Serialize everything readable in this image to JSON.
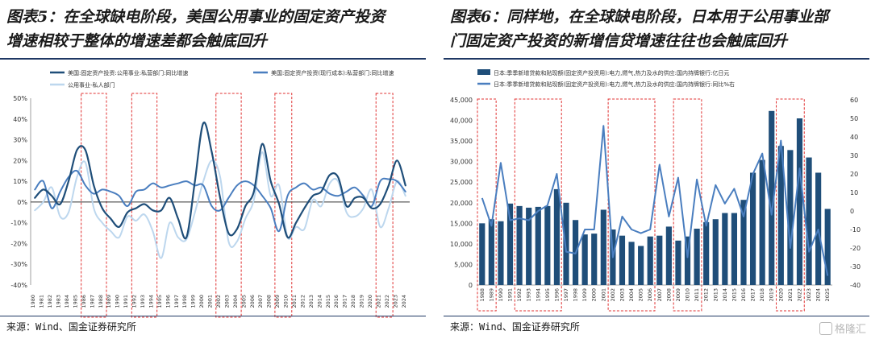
{
  "panel5": {
    "title_line1": "图表5：在全球缺电阶段，美国公用事业的固定资产投资",
    "title_line2": "增速相较于整体的增速差都会触底回升",
    "source": "来源：Wind、国金证券研究所"
  },
  "panel6": {
    "title_line1": "图表6：同样地，在全球缺电阶段，日本用于公用事业部",
    "title_line2": "门固定资产投资的新增信贷增速往往也会触底回升",
    "source": "来源：Wind、国金证券研究所"
  },
  "watermark": "格隆汇",
  "colors": {
    "dark": "#1f4e79",
    "mid": "#4a7ebf",
    "light": "#bdd7ee",
    "highlight": "#e03030",
    "bar": "#1f4e79",
    "line": "#4a7ebf"
  },
  "chart_data": [
    {
      "type": "line",
      "years": [
        "1980",
        "1981",
        "1982",
        "1983",
        "1984",
        "1985",
        "1986",
        "1987",
        "1988",
        "1989",
        "1990",
        "1991",
        "1992",
        "1993",
        "1994",
        "1995",
        "1996",
        "1997",
        "1998",
        "1999",
        "2000",
        "2001",
        "2002",
        "2003",
        "2004",
        "2005",
        "2006",
        "2007",
        "2008",
        "2009",
        "2010",
        "2011",
        "2012",
        "2013",
        "2014",
        "2015",
        "2016",
        "2017",
        "2018",
        "2019",
        "2020",
        "2021",
        "2022",
        "2023",
        "2024"
      ],
      "yticks": [
        "50%",
        "40%",
        "30%",
        "20%",
        "10%",
        "0%",
        "-10%",
        "-20%",
        "-30%",
        "-40%"
      ],
      "ylim": [
        -40,
        50
      ],
      "highlight_ranges": [
        [
          "1986",
          "1988"
        ],
        [
          "1992",
          "1994"
        ],
        [
          "2002",
          "2004"
        ],
        [
          "2009",
          "2010"
        ],
        [
          "2021",
          "2022"
        ]
      ],
      "series": [
        {
          "name": "美国:固定资产投资:公用事业:私营部门:同比增速",
          "color_key": "dark",
          "width": 2.2,
          "values": [
            2,
            6,
            3,
            -1,
            10,
            25,
            25,
            8,
            -3,
            -8,
            -12,
            -5,
            -3,
            -1,
            -4,
            -4,
            2,
            -8,
            -17,
            10,
            38,
            24,
            2,
            -15,
            -13,
            -2,
            5,
            28,
            10,
            -1,
            -17,
            -10,
            -3,
            3,
            5,
            13,
            12,
            -2,
            2,
            2,
            -3,
            -1,
            8,
            20,
            8
          ]
        },
        {
          "name": "美国:固定资产投资(现行成本):私营部门:同比增速",
          "color_key": "mid",
          "width": 2.0,
          "values": [
            6,
            10,
            -3,
            5,
            12,
            15,
            8,
            4,
            6,
            5,
            3,
            -2,
            5,
            6,
            9,
            7,
            8,
            9,
            10,
            8,
            8,
            -2,
            -4,
            2,
            8,
            10,
            8,
            3,
            -3,
            -14,
            3,
            7,
            9,
            6,
            7,
            4,
            3,
            5,
            7,
            3,
            -2,
            10,
            11,
            10,
            5
          ]
        },
        {
          "name": "公用事业-私人部门",
          "color_key": "light",
          "width": 2.0,
          "values": [
            -4,
            0,
            7,
            -7,
            -5,
            12,
            19,
            -3,
            -10,
            -14,
            -17,
            -7,
            -9,
            -6,
            -14,
            -27,
            -10,
            -17,
            -18,
            -5,
            10,
            20,
            12,
            -19,
            -19,
            -8,
            1,
            24,
            3,
            8,
            -17,
            -12,
            -13,
            1,
            -2,
            9,
            10,
            -5,
            -7,
            -3,
            6,
            -12,
            -3,
            10,
            3
          ]
        }
      ]
    },
    {
      "type": "bar+line",
      "years": [
        "1988",
        "1989",
        "1990",
        "1991",
        "1992",
        "1993",
        "1994",
        "1995",
        "1996",
        "1997",
        "1998",
        "1999",
        "2000",
        "2001",
        "2002",
        "2003",
        "2004",
        "2005",
        "2006",
        "2007",
        "2008",
        "2009",
        "2010",
        "2011",
        "2012",
        "2013",
        "2014",
        "2015",
        "2016",
        "2017",
        "2018",
        "2019",
        "2020",
        "2021",
        "2022",
        "2023",
        "2024",
        "2025"
      ],
      "left_ticks": [
        "45,000",
        "40,000",
        "35,000",
        "30,000",
        "25,000",
        "20,000",
        "15,000",
        "10,000",
        "5,000",
        "0"
      ],
      "right_ticks": [
        "60",
        "50",
        "40",
        "30",
        "20",
        "10",
        "0",
        "-10",
        "-20",
        "-30",
        "-40"
      ],
      "ylim_left": [
        0,
        45000
      ],
      "ylim_right": [
        -40,
        60
      ],
      "highlight_ranges": [
        [
          "1988",
          "1989"
        ],
        [
          "1992",
          "1996"
        ],
        [
          "2002",
          "2006"
        ],
        [
          "2009",
          "2011"
        ],
        [
          "2020",
          "2022"
        ]
      ],
      "bars": {
        "name": "日本:季季新增贷款和贴现额(固定资产投资用):电力,燃气,热力及水的供应:国内持牌银行:亿日元",
        "values": [
          15000,
          16000,
          15500,
          19800,
          19200,
          18800,
          19000,
          19200,
          23300,
          20000,
          15800,
          12300,
          12500,
          18300,
          13500,
          12000,
          10500,
          9500,
          11800,
          12000,
          14200,
          10800,
          11800,
          13700,
          15300,
          16000,
          17500,
          17500,
          20700,
          27300,
          30400,
          42300,
          33800,
          32800,
          40500,
          31000,
          27300,
          18500
        ]
      },
      "line": {
        "name": "日本:季季新增贷款和贴现额(固定资产投资用):电力,燃气,热力及水的供应:国内持牌银行:同比%右",
        "values": [
          7,
          -8,
          26,
          -5,
          -4,
          -5,
          0,
          3,
          20,
          -22,
          -23,
          -10,
          -10,
          46,
          -25,
          -3,
          -10,
          -12,
          -10,
          25,
          -3,
          18,
          -25,
          17,
          -8,
          14,
          4,
          12,
          -3,
          20,
          31,
          -2,
          38,
          -20,
          23,
          -22,
          -10,
          -35
        ]
      }
    }
  ]
}
